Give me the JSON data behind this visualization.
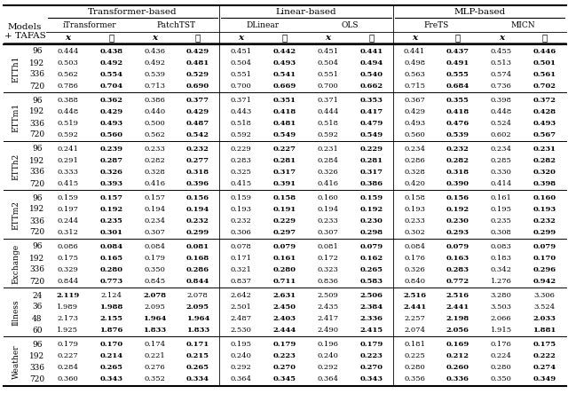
{
  "header_level1": [
    "Transformer-based",
    "Linear-based",
    "MLP-based"
  ],
  "header_level2": [
    "iTransformer",
    "PatchTST",
    "DLinear",
    "OLS",
    "FreTS",
    "MICN"
  ],
  "row_groups": [
    {
      "name": "ETTh1",
      "horizons": [
        96,
        192,
        336,
        720
      ],
      "values": [
        [
          0.444,
          0.438,
          0.436,
          0.429,
          0.451,
          0.442,
          0.451,
          0.441,
          0.441,
          0.437,
          0.455,
          0.446
        ],
        [
          0.503,
          0.492,
          0.492,
          0.481,
          0.504,
          0.493,
          0.504,
          0.494,
          0.498,
          0.491,
          0.513,
          0.501
        ],
        [
          0.562,
          0.554,
          0.539,
          0.529,
          0.551,
          0.541,
          0.551,
          0.54,
          0.563,
          0.555,
          0.574,
          0.561
        ],
        [
          0.786,
          0.704,
          0.713,
          0.69,
          0.7,
          0.669,
          0.7,
          0.662,
          0.715,
          0.684,
          0.736,
          0.702
        ]
      ],
      "bold": [
        [
          1,
          3,
          5,
          7,
          9,
          11
        ],
        [
          1,
          3,
          5,
          7,
          9,
          11
        ],
        [
          1,
          3,
          5,
          7,
          9,
          11
        ],
        [
          1,
          3,
          5,
          7,
          9,
          11
        ]
      ]
    },
    {
      "name": "ETTm1",
      "horizons": [
        96,
        192,
        336,
        720
      ],
      "values": [
        [
          0.388,
          0.362,
          0.386,
          0.377,
          0.371,
          0.351,
          0.371,
          0.353,
          0.367,
          0.355,
          0.398,
          0.372
        ],
        [
          0.448,
          0.429,
          0.44,
          0.429,
          0.443,
          0.418,
          0.444,
          0.417,
          0.429,
          0.418,
          0.448,
          0.428
        ],
        [
          0.519,
          0.493,
          0.5,
          0.487,
          0.518,
          0.481,
          0.518,
          0.479,
          0.493,
          0.476,
          0.524,
          0.493
        ],
        [
          0.592,
          0.56,
          0.562,
          0.542,
          0.592,
          0.549,
          0.592,
          0.549,
          0.56,
          0.539,
          0.602,
          0.567
        ]
      ],
      "bold": [
        [
          1,
          3,
          5,
          7,
          9,
          11
        ],
        [
          1,
          3,
          5,
          7,
          9,
          11
        ],
        [
          1,
          3,
          5,
          7,
          9,
          11
        ],
        [
          1,
          3,
          5,
          7,
          9,
          11
        ]
      ]
    },
    {
      "name": "ETTh2",
      "horizons": [
        96,
        192,
        336,
        720
      ],
      "values": [
        [
          0.241,
          0.239,
          0.233,
          0.232,
          0.229,
          0.227,
          0.231,
          0.229,
          0.234,
          0.232,
          0.234,
          0.231
        ],
        [
          0.291,
          0.287,
          0.282,
          0.277,
          0.283,
          0.281,
          0.284,
          0.281,
          0.286,
          0.282,
          0.285,
          0.282
        ],
        [
          0.333,
          0.326,
          0.328,
          0.318,
          0.325,
          0.317,
          0.326,
          0.317,
          0.328,
          0.318,
          0.33,
          0.32
        ],
        [
          0.415,
          0.393,
          0.416,
          0.396,
          0.415,
          0.391,
          0.416,
          0.386,
          0.42,
          0.39,
          0.414,
          0.398
        ]
      ],
      "bold": [
        [
          1,
          3,
          5,
          7,
          9,
          11
        ],
        [
          1,
          3,
          5,
          7,
          9,
          11
        ],
        [
          1,
          3,
          5,
          7,
          9,
          11
        ],
        [
          1,
          3,
          5,
          7,
          9,
          11
        ]
      ]
    },
    {
      "name": "ETTm2",
      "horizons": [
        96,
        192,
        336,
        720
      ],
      "values": [
        [
          0.159,
          0.157,
          0.157,
          0.156,
          0.159,
          0.158,
          0.16,
          0.159,
          0.158,
          0.156,
          0.161,
          0.16
        ],
        [
          0.197,
          0.192,
          0.194,
          0.194,
          0.193,
          0.191,
          0.194,
          0.192,
          0.193,
          0.192,
          0.195,
          0.193
        ],
        [
          0.244,
          0.235,
          0.234,
          0.232,
          0.232,
          0.229,
          0.233,
          0.23,
          0.233,
          0.23,
          0.235,
          0.232
        ],
        [
          0.312,
          0.301,
          0.307,
          0.299,
          0.306,
          0.297,
          0.307,
          0.298,
          0.302,
          0.293,
          0.308,
          0.299
        ]
      ],
      "bold": [
        [
          1,
          3,
          5,
          7,
          9,
          11
        ],
        [
          1,
          3,
          5,
          7,
          9,
          11
        ],
        [
          1,
          3,
          5,
          7,
          9,
          11
        ],
        [
          1,
          3,
          5,
          7,
          9,
          11
        ]
      ]
    },
    {
      "name": "Exchange",
      "horizons": [
        96,
        192,
        336,
        720
      ],
      "values": [
        [
          0.086,
          0.084,
          0.084,
          0.081,
          0.078,
          0.079,
          0.081,
          0.079,
          0.084,
          0.079,
          0.083,
          0.079
        ],
        [
          0.175,
          0.165,
          0.179,
          0.168,
          0.171,
          0.161,
          0.172,
          0.162,
          0.176,
          0.163,
          0.183,
          0.17
        ],
        [
          0.329,
          0.28,
          0.35,
          0.286,
          0.321,
          0.28,
          0.323,
          0.265,
          0.326,
          0.283,
          0.342,
          0.296
        ],
        [
          0.844,
          0.773,
          0.845,
          0.844,
          0.837,
          0.711,
          0.836,
          0.583,
          0.84,
          0.772,
          1.276,
          0.942
        ]
      ],
      "bold": [
        [
          1,
          3,
          5,
          7,
          9,
          11
        ],
        [
          1,
          3,
          5,
          7,
          9,
          11
        ],
        [
          1,
          3,
          5,
          7,
          9,
          11
        ],
        [
          1,
          3,
          5,
          7,
          9,
          11
        ]
      ]
    },
    {
      "name": "Illness",
      "horizons": [
        24,
        36,
        48,
        60
      ],
      "values": [
        [
          2.119,
          2.124,
          2.078,
          2.078,
          2.642,
          2.631,
          2.509,
          2.506,
          2.516,
          2.516,
          3.28,
          3.306
        ],
        [
          1.989,
          1.988,
          2.095,
          2.095,
          2.501,
          2.45,
          2.435,
          2.384,
          2.441,
          2.441,
          3.503,
          3.524
        ],
        [
          2.173,
          2.155,
          1.964,
          1.964,
          2.487,
          2.403,
          2.417,
          2.336,
          2.257,
          2.198,
          2.066,
          2.033
        ],
        [
          1.925,
          1.876,
          1.833,
          1.833,
          2.53,
          2.444,
          2.49,
          2.415,
          2.074,
          2.056,
          1.915,
          1.881
        ]
      ],
      "bold": [
        [
          0,
          2,
          5,
          7,
          8,
          9
        ],
        [
          1,
          3,
          5,
          7,
          8,
          9
        ],
        [
          1,
          2,
          3,
          5,
          7,
          9,
          11
        ],
        [
          1,
          2,
          3,
          5,
          7,
          9,
          11
        ]
      ]
    },
    {
      "name": "Weather",
      "horizons": [
        96,
        192,
        336,
        720
      ],
      "values": [
        [
          0.179,
          0.17,
          0.174,
          0.171,
          0.195,
          0.179,
          0.196,
          0.179,
          0.181,
          0.169,
          0.176,
          0.175
        ],
        [
          0.227,
          0.214,
          0.221,
          0.215,
          0.24,
          0.223,
          0.24,
          0.223,
          0.225,
          0.212,
          0.224,
          0.222
        ],
        [
          0.284,
          0.265,
          0.276,
          0.265,
          0.292,
          0.27,
          0.292,
          0.27,
          0.28,
          0.26,
          0.28,
          0.274
        ],
        [
          0.36,
          0.343,
          0.352,
          0.334,
          0.364,
          0.345,
          0.364,
          0.343,
          0.356,
          0.336,
          0.35,
          0.349
        ]
      ],
      "bold": [
        [
          1,
          3,
          5,
          7,
          9,
          11
        ],
        [
          1,
          3,
          5,
          7,
          9,
          11
        ],
        [
          1,
          3,
          5,
          7,
          9,
          11
        ],
        [
          1,
          3,
          5,
          7,
          9,
          11
        ]
      ]
    }
  ]
}
